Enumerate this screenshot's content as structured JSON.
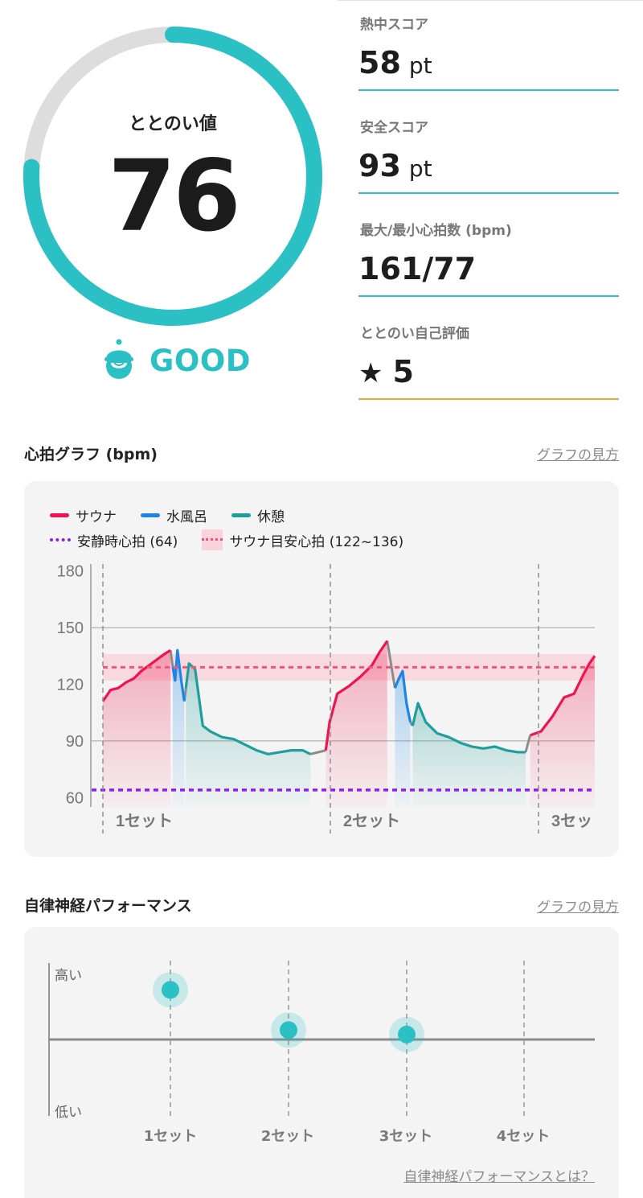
{
  "summary": {
    "gauge_label": "ととのい値",
    "gauge_value": "76",
    "gauge_score": 76,
    "rating_text": "GOOD",
    "rating_icon": "smiling-hat-face-icon"
  },
  "stats": [
    {
      "label": "熱中スコア",
      "value": "58",
      "unit": "pt"
    },
    {
      "label": "安全スコア",
      "value": "93",
      "unit": "pt"
    },
    {
      "label": "最大/最小心拍数 (bpm)",
      "value": "161/77",
      "unit": ""
    },
    {
      "label": "ととのい自己評価",
      "value": "5",
      "unit": "",
      "icon": "star-icon"
    }
  ],
  "colors": {
    "accent": "#2bc0c4",
    "sauna": "#f0134f",
    "cold_bath": "#1a86e8",
    "rest": "#1f9e9b",
    "resting_hr": "#8a1ff0",
    "target_band": "#f3557a",
    "self_rating_line": "#f3a23c"
  },
  "heart_section": {
    "title": "心拍グラフ (bpm)",
    "link": "グラフの見方",
    "legend": {
      "sauna": "サウナ",
      "cold_bath": "水風呂",
      "rest": "休憩",
      "resting": "安静時心拍 (64)",
      "target": "サウナ目安心拍 (122~136)"
    },
    "set_labels": [
      "1セット",
      "2セット",
      "3セッ"
    ]
  },
  "ans_section": {
    "title": "自律神経パフォーマンス",
    "link": "グラフの見方",
    "y_high": "高い",
    "y_low": "低い",
    "x_labels": [
      "1セット",
      "2セット",
      "3セット",
      "4セット"
    ],
    "footer_link": "自律神経パフォーマンスとは？"
  },
  "chart_data": [
    {
      "type": "line",
      "title": "心拍グラフ (bpm)",
      "ylabel": "",
      "ylim": [
        55,
        185
      ],
      "yticks": [
        60,
        90,
        120,
        150,
        180
      ],
      "x_unit": "minutes (approx., since session start)",
      "reference_lines": [
        {
          "name": "安静時心拍 (64)",
          "y": 64
        },
        {
          "name": "サウナ目安心拍 (122~136)",
          "range": [
            122,
            136
          ],
          "center": 129
        }
      ],
      "set_markers": [
        {
          "label": "1セット",
          "x": 0
        },
        {
          "label": "2セット",
          "x": 29
        },
        {
          "label": "3セッ",
          "x": 55
        }
      ],
      "series": [
        {
          "name": "サウナ",
          "points": [
            [
              0,
              111
            ],
            [
              1,
              117
            ],
            [
              2,
              118
            ],
            [
              3,
              121
            ],
            [
              4,
              123
            ],
            [
              5,
              127
            ],
            [
              6,
              130
            ],
            [
              7,
              133
            ],
            [
              8,
              136
            ],
            [
              8.8,
              138
            ],
            [
              29,
              85
            ],
            [
              29.5,
              100
            ],
            [
              30.5,
              115
            ],
            [
              32,
              119
            ],
            [
              33.5,
              124
            ],
            [
              35,
              130
            ],
            [
              36,
              137
            ],
            [
              37,
              143
            ],
            [
              55.6,
              93
            ],
            [
              57,
              95
            ],
            [
              58.5,
              103
            ],
            [
              60,
              113
            ],
            [
              61.3,
              115
            ],
            [
              62.5,
              125
            ],
            [
              63.3,
              131
            ],
            [
              64,
              135
            ]
          ]
        },
        {
          "name": "水風呂",
          "points": [
            [
              9.1,
              129
            ],
            [
              9.4,
              122
            ],
            [
              9.7,
              138
            ],
            [
              10.2,
              122
            ],
            [
              10.6,
              111
            ],
            [
              38,
              118
            ],
            [
              38.5,
              123
            ],
            [
              39,
              127
            ],
            [
              39.5,
              110
            ],
            [
              40,
              100
            ]
          ]
        },
        {
          "name": "休憩",
          "points": [
            [
              10.8,
              118
            ],
            [
              11.2,
              131
            ],
            [
              12,
              128
            ],
            [
              13,
              98
            ],
            [
              14,
              95
            ],
            [
              15.5,
              92
            ],
            [
              17,
              91
            ],
            [
              18.5,
              88
            ],
            [
              20,
              85
            ],
            [
              21.5,
              83
            ],
            [
              23,
              84
            ],
            [
              24.5,
              85
            ],
            [
              26,
              85
            ],
            [
              27,
              83
            ],
            [
              40.3,
              98
            ],
            [
              41,
              110
            ],
            [
              42,
              100
            ],
            [
              43.5,
              94
            ],
            [
              45,
              92
            ],
            [
              46.5,
              89
            ],
            [
              48,
              87
            ],
            [
              49.5,
              86
            ],
            [
              51,
              87
            ],
            [
              52.5,
              85
            ],
            [
              54,
              84
            ],
            [
              55,
              84
            ]
          ]
        }
      ]
    },
    {
      "type": "scatter",
      "title": "自律神経パフォーマンス",
      "categories": [
        "1セット",
        "2セット",
        "3セット",
        "4セット"
      ],
      "y_labels": [
        "低い",
        "高い"
      ],
      "series": [
        {
          "values": [
            0.82,
            0.55,
            0.52,
            null
          ]
        }
      ]
    }
  ]
}
